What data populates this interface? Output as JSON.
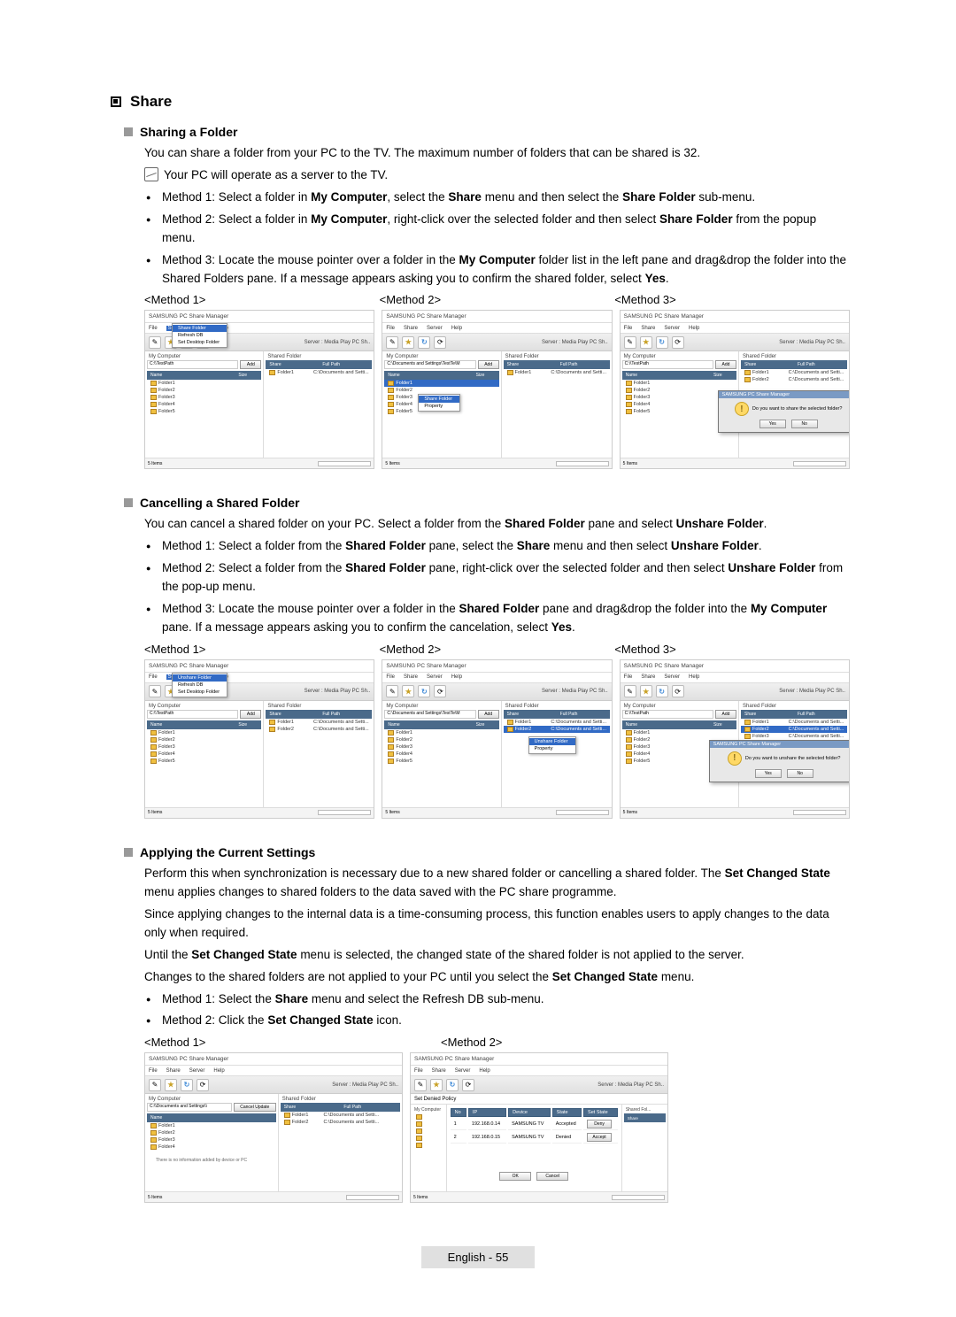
{
  "section": {
    "title": "Share"
  },
  "sharing": {
    "heading": "Sharing a Folder",
    "intro": "You can share a folder from your PC to the TV. The maximum number of folders that can be shared is 32.",
    "note": "Your PC will operate as a server to the TV.",
    "methods": [
      "Method 1: Select a folder in **My Computer**, select the **Share** menu and then select the **Share Folder** sub-menu.",
      "Method 2: Select a folder in **My Computer**, right-click over the selected folder and then select **Share Folder** from the popup menu.",
      "Method 3: Locate the mouse pointer over a folder in the **My Computer** folder list in the left pane and drag&drop the folder into the Shared Folders pane. If a message appears asking you to confirm the shared folder, select **Yes**."
    ],
    "labels": [
      "<Method 1>",
      "<Method 2>",
      "<Method 3>"
    ]
  },
  "cancelling": {
    "heading": "Cancelling a Shared Folder",
    "intro": "You can cancel a shared folder on your PC. Select a folder from the **Shared Folder** pane and select **Unshare Folder**.",
    "methods": [
      "Method 1: Select a folder from the **Shared Folder** pane, select the **Share** menu and then select **Unshare Folder**.",
      "Method 2: Select a folder from the **Shared Folder** pane, right-click over the selected folder and then select **Unshare Folder** from the pop-up menu.",
      "Method 3: Locate the mouse pointer over a folder in the **Shared Folder** pane and drag&drop the folder into the **My Computer** pane. If a message appears asking you to confirm the cancelation, select **Yes**."
    ],
    "labels": [
      "<Method 1>",
      "<Method 2>",
      "<Method 3>"
    ]
  },
  "applying": {
    "heading": "Applying the Current Settings",
    "p1": "Perform this when synchronization is necessary due to a new shared folder or cancelling a shared folder. The **Set Changed State** menu applies changes to shared folders to the data saved with the PC share programme.",
    "p2": "Since applying changes to the internal data is a time-consuming process, this function enables users to apply changes to the data only when required.",
    "p3": "Until the **Set Changed State** menu is selected, the changed state of the shared folder is not applied to the server.",
    "p4": "Changes to the shared folders are not applied to your PC until you select the **Set Changed State** menu.",
    "methods": [
      "Method 1: Select the **Share** menu and select the Refresh DB sub-menu.",
      "Method 2: Click the **Set Changed State** icon."
    ],
    "labels": [
      "<Method 1>",
      "<Method 2>"
    ]
  },
  "screenshots": {
    "app_title": "SAMSUNG PC Share Manager",
    "menu": {
      "file": "File",
      "share": "Share",
      "server": "Server",
      "help": "Help"
    },
    "server_label": "Server : Media Play PC Sh..",
    "my_computer": "My Computer",
    "shared_folder": "Shared Folder",
    "add_btn": "Add",
    "path_val": "C:\\Documents and Settings\\TestTe\\M",
    "name_col": "Name",
    "size_col": "Size",
    "date_col": "Date",
    "share_col": "Share",
    "fullpath_col": "Full Path",
    "folders": [
      "Folder1",
      "Folder2",
      "Folder3",
      "Folder4",
      "Folder5"
    ],
    "shared_item": "Folder1",
    "shared_path": "C:\\Documents and Setti...",
    "share_menu": {
      "share_folder": "Share Folder",
      "refresh": "Refresh DB",
      "set_desktop": "Set Desktop Folder"
    },
    "ctx_share": "Share Folder",
    "ctx_property": "Property",
    "ctx_unshare": "Unshare Folder",
    "dlg_title": "SAMSUNG PC Share Manager",
    "dlg_share_msg": "Do you want to share the selected folder?",
    "dlg_unshare_msg": "Do you want to unshare the selected folder?",
    "dlg_yes": "Yes",
    "dlg_no": "No",
    "status_items": "5 Items",
    "refresh_hint": "There is no information added by device or PC",
    "cancel_update": "Cancel Update",
    "policy_title": "Set Denied Policy",
    "policy_cols": [
      "No",
      "IP",
      "Device",
      "State",
      "Set State"
    ],
    "policy_rows": [
      [
        "1",
        "192.168.0.14",
        "SAMSUNG TV",
        "Accepted",
        "Deny"
      ],
      [
        "2",
        "192.168.0.15",
        "SAMSUNG TV",
        "Denied",
        "Accept"
      ]
    ],
    "ok": "OK",
    "cancel": "Cancel"
  },
  "footer": "English - 55",
  "colors": {
    "page_bg": "#ffffff",
    "text": "#000000",
    "sub_bullet": "#999999",
    "pane_header_bg": "#4a6a8a",
    "selection_bg": "#316ac5",
    "dialog_title_bg": "#7a9ac4",
    "folder_icon": "#f0c040",
    "footer_bg": "#e0e0e0"
  }
}
